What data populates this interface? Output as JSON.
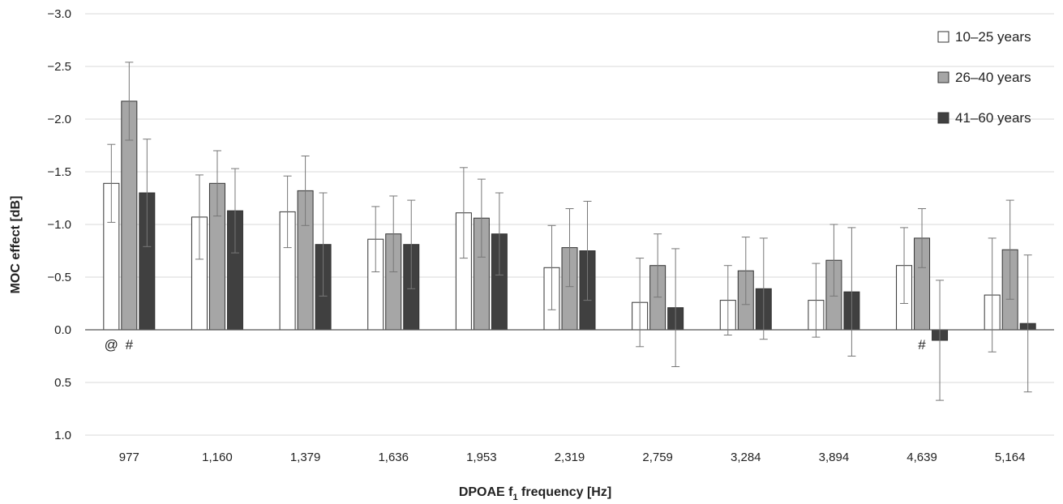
{
  "chart_data": {
    "type": "bar",
    "xlabel_main": "DPOAE f",
    "xlabel_sub": "1",
    "xlabel_rest": " frequency [Hz]",
    "ylabel": "MOC effect [dB]",
    "categories": [
      "977",
      "1,160",
      "1,379",
      "1,636",
      "1,953",
      "2,319",
      "2,759",
      "3,284",
      "3,894",
      "4,639",
      "5,164"
    ],
    "ylim": [
      -3.0,
      1.0
    ],
    "y_axis_inverted": true,
    "yticks": [
      -3.0,
      -2.5,
      -2.0,
      -1.5,
      -1.0,
      -0.5,
      0.0,
      0.5,
      1.0
    ],
    "ytick_labels": [
      "−3.0",
      "−2.5",
      "−2.0",
      "−1.5",
      "−1.0",
      "−0.5",
      "0.0",
      "0.5",
      "1.0"
    ],
    "grid": true,
    "legend_position": "top-right",
    "series": [
      {
        "name": "10–25 years",
        "color": "#ffffff",
        "values": [
          -1.39,
          -1.07,
          -1.12,
          -0.86,
          -1.11,
          -0.59,
          -0.26,
          -0.28,
          -0.28,
          -0.61,
          -0.33
        ],
        "errors": [
          0.37,
          0.4,
          0.34,
          0.31,
          0.43,
          0.4,
          0.42,
          0.33,
          0.35,
          0.36,
          0.54
        ]
      },
      {
        "name": "26–40 years",
        "color": "#a6a6a6",
        "values": [
          -2.17,
          -1.39,
          -1.32,
          -0.91,
          -1.06,
          -0.78,
          -0.61,
          -0.56,
          -0.66,
          -0.87,
          -0.76
        ],
        "errors": [
          0.37,
          0.31,
          0.33,
          0.36,
          0.37,
          0.37,
          0.3,
          0.32,
          0.34,
          0.28,
          0.47
        ]
      },
      {
        "name": "41–60 years",
        "color": "#404040",
        "values": [
          -1.3,
          -1.13,
          -0.81,
          -0.81,
          -0.91,
          -0.75,
          -0.21,
          -0.39,
          -0.36,
          0.1,
          -0.06
        ],
        "errors": [
          0.51,
          0.4,
          0.49,
          0.42,
          0.39,
          0.47,
          0.56,
          0.48,
          0.61,
          0.57,
          0.65
        ]
      }
    ],
    "annotations": [
      {
        "text": "@",
        "category_index": 0,
        "series_index": 0
      },
      {
        "text": "#",
        "category_index": 0,
        "series_index": 1
      },
      {
        "text": "#",
        "category_index": 9,
        "series_index": 1
      }
    ]
  }
}
